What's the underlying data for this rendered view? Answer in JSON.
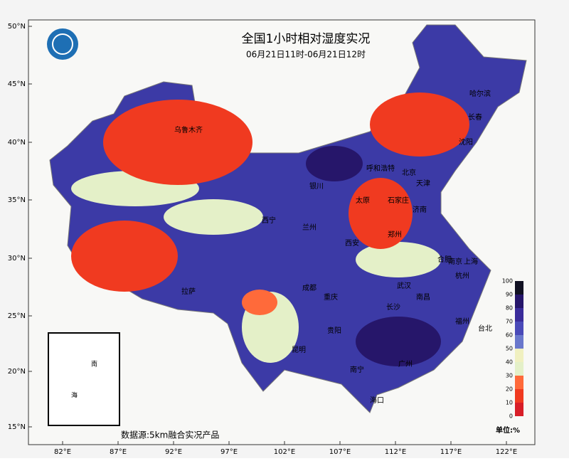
{
  "title": "全国1小时相对湿度实况",
  "subtitle": "06月21日11时-06月21日12时",
  "lat_labels": [
    "50°N",
    "45°N",
    "40°N",
    "35°N",
    "30°N",
    "25°N",
    "20°N",
    "15°N"
  ],
  "lon_labels": [
    "82°E",
    "87°E",
    "92°E",
    "97°E",
    "102°E",
    "107°E",
    "112°E",
    "117°E",
    "122°E"
  ],
  "cities": [
    "乌鲁木齐",
    "哈尔滨",
    "长春",
    "沈阳",
    "呼和浩特",
    "北京",
    "天津",
    "石家庄",
    "太原",
    "济南",
    "银川",
    "兰州",
    "西宁",
    "西安",
    "郑州",
    "合肥",
    "南京",
    "上海",
    "杭州",
    "武汉",
    "成都",
    "重庆",
    "长沙",
    "南昌",
    "福州",
    "台北",
    "贵阳",
    "昆明",
    "南宁",
    "广州",
    "海口",
    "拉萨"
  ],
  "inset_labels": [
    "南",
    "海"
  ],
  "legend": {
    "ticks": [
      100,
      90,
      80,
      70,
      60,
      50,
      40,
      30,
      20,
      10,
      0
    ],
    "colors": [
      "#111122",
      "#26166a",
      "#3a2c9a",
      "#4a4ab8",
      "#6a78cc",
      "#f0f0c0",
      "#e4f0c8",
      "#ff6a3a",
      "#f03a20",
      "#d81e28"
    ],
    "unit": "单位:%"
  },
  "source": "数据源:5km融合实况产品"
}
